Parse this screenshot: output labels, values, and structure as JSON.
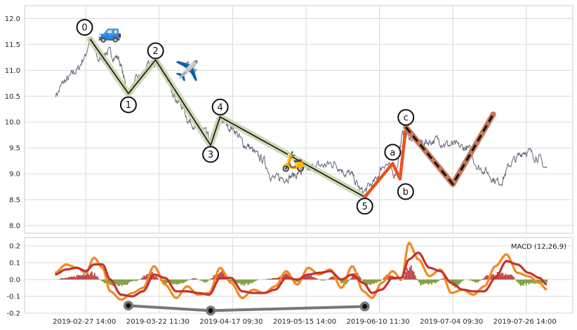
{
  "chart_data": [
    {
      "type": "line",
      "title": "",
      "xlabel": "",
      "ylabel": "",
      "ylim": [
        7.85,
        12.25
      ],
      "yticks": [
        "8.0",
        "8.5",
        "9.0",
        "9.5",
        "10.0",
        "10.5",
        "11.0",
        "11.5",
        "12.0"
      ],
      "xticks": [
        "2019-02-27 14:00",
        "2019-03-22 11:30",
        "2019-04-17 09:30",
        "2019-05-15 14:00",
        "2019-06-10 11:30",
        "2019-07-04 09:30",
        "2019-07-26 14:00"
      ],
      "x_range": [
        0,
        7.0
      ],
      "grid": true,
      "price_anchors": [
        {
          "x": 0.31,
          "y": 10.55
        },
        {
          "x": 0.45,
          "y": 10.8
        },
        {
          "x": 0.6,
          "y": 11.0
        },
        {
          "x": 0.7,
          "y": 11.25
        },
        {
          "x": 0.78,
          "y": 11.6
        },
        {
          "x": 0.9,
          "y": 11.2
        },
        {
          "x": 1.0,
          "y": 11.35
        },
        {
          "x": 1.15,
          "y": 11.25
        },
        {
          "x": 1.3,
          "y": 10.6
        },
        {
          "x": 1.45,
          "y": 10.85
        },
        {
          "x": 1.6,
          "y": 11.1
        },
        {
          "x": 1.72,
          "y": 11.15
        },
        {
          "x": 1.85,
          "y": 10.75
        },
        {
          "x": 2.0,
          "y": 10.35
        },
        {
          "x": 2.15,
          "y": 10.0
        },
        {
          "x": 2.3,
          "y": 9.85
        },
        {
          "x": 2.42,
          "y": 9.65
        },
        {
          "x": 2.55,
          "y": 10.05
        },
        {
          "x": 2.7,
          "y": 9.9
        },
        {
          "x": 2.9,
          "y": 9.55
        },
        {
          "x": 3.1,
          "y": 9.3
        },
        {
          "x": 3.3,
          "y": 8.9
        },
        {
          "x": 3.5,
          "y": 8.95
        },
        {
          "x": 3.7,
          "y": 9.05
        },
        {
          "x": 3.9,
          "y": 9.15
        },
        {
          "x": 4.1,
          "y": 9.2
        },
        {
          "x": 4.3,
          "y": 9.0
        },
        {
          "x": 4.5,
          "y": 8.65
        },
        {
          "x": 4.62,
          "y": 8.8
        },
        {
          "x": 4.8,
          "y": 9.2
        },
        {
          "x": 4.92,
          "y": 9.0
        },
        {
          "x": 5.05,
          "y": 9.75
        },
        {
          "x": 5.3,
          "y": 9.6
        },
        {
          "x": 5.5,
          "y": 9.65
        },
        {
          "x": 5.7,
          "y": 9.55
        },
        {
          "x": 5.9,
          "y": 9.5
        },
        {
          "x": 6.1,
          "y": 9.1
        },
        {
          "x": 6.35,
          "y": 8.85
        },
        {
          "x": 6.55,
          "y": 9.25
        },
        {
          "x": 6.7,
          "y": 9.45
        },
        {
          "x": 6.85,
          "y": 9.35
        },
        {
          "x": 7.0,
          "y": 9.1
        }
      ],
      "price_series_color": "#5d6978",
      "impulse_waves": {
        "labels": [
          "0",
          "1",
          "2",
          "3",
          "4",
          "5"
        ],
        "points": [
          {
            "x": 0.78,
            "y": 11.6
          },
          {
            "x": 1.3,
            "y": 10.55
          },
          {
            "x": 1.67,
            "y": 11.2
          },
          {
            "x": 2.42,
            "y": 9.55
          },
          {
            "x": 2.55,
            "y": 10.1
          },
          {
            "x": 4.52,
            "y": 8.55
          }
        ],
        "line_color": "#111111",
        "band_color": "#c5d4a8"
      },
      "corrective_waves": {
        "labels": [
          "a",
          "b",
          "c"
        ],
        "points": [
          {
            "x": 4.52,
            "y": 8.55
          },
          {
            "x": 4.9,
            "y": 9.2
          },
          {
            "x": 5.0,
            "y": 8.9
          },
          {
            "x": 5.08,
            "y": 9.9
          }
        ],
        "color": "#e8531e"
      },
      "projection": {
        "points": [
          {
            "x": 5.08,
            "y": 9.9
          },
          {
            "x": 5.72,
            "y": 8.8
          },
          {
            "x": 6.27,
            "y": 10.15
          }
        ],
        "line_color": "#111111",
        "band_color": "#c8775a"
      },
      "icons": [
        {
          "name": "car-icon",
          "glyph": "🚙",
          "x": 1.05,
          "y": 11.75
        },
        {
          "name": "airplane-icon",
          "glyph": "✈️",
          "x": 2.1,
          "y": 11.0
        },
        {
          "name": "scooter-icon",
          "glyph": "🛵",
          "x": 3.55,
          "y": 9.25
        }
      ]
    },
    {
      "type": "line",
      "title": "",
      "legend": "MACD (12,26,9)",
      "legend_position": "top-right",
      "ylim": [
        -0.2,
        0.25
      ],
      "yticks": [
        "-0.2",
        "-0.1",
        "0.0",
        "0.1",
        "0.2"
      ],
      "x_range": [
        0,
        7.0
      ],
      "grid": true,
      "macd_fast": {
        "color": "#f2891f",
        "points": [
          {
            "x": 0.3,
            "y": 0.04
          },
          {
            "x": 0.45,
            "y": 0.09
          },
          {
            "x": 0.6,
            "y": 0.07
          },
          {
            "x": 0.72,
            "y": 0.04
          },
          {
            "x": 0.83,
            "y": 0.13
          },
          {
            "x": 0.95,
            "y": 0.07
          },
          {
            "x": 1.05,
            "y": -0.07
          },
          {
            "x": 1.2,
            "y": -0.12
          },
          {
            "x": 1.35,
            "y": -0.08
          },
          {
            "x": 1.5,
            "y": -0.05
          },
          {
            "x": 1.65,
            "y": 0.08
          },
          {
            "x": 1.8,
            "y": -0.03
          },
          {
            "x": 1.95,
            "y": -0.11
          },
          {
            "x": 2.1,
            "y": -0.04
          },
          {
            "x": 2.25,
            "y": -0.09
          },
          {
            "x": 2.4,
            "y": -0.08
          },
          {
            "x": 2.55,
            "y": 0.07
          },
          {
            "x": 2.7,
            "y": -0.02
          },
          {
            "x": 2.85,
            "y": -0.11
          },
          {
            "x": 3.0,
            "y": -0.06
          },
          {
            "x": 3.15,
            "y": -0.08
          },
          {
            "x": 3.3,
            "y": -0.04
          },
          {
            "x": 3.45,
            "y": 0.05
          },
          {
            "x": 3.6,
            "y": -0.03
          },
          {
            "x": 3.75,
            "y": 0.07
          },
          {
            "x": 3.9,
            "y": 0.03
          },
          {
            "x": 4.05,
            "y": 0.06
          },
          {
            "x": 4.2,
            "y": -0.05
          },
          {
            "x": 4.35,
            "y": 0.08
          },
          {
            "x": 4.5,
            "y": -0.07
          },
          {
            "x": 4.62,
            "y": -0.11
          },
          {
            "x": 4.75,
            "y": -0.02
          },
          {
            "x": 4.9,
            "y": 0.05
          },
          {
            "x": 5.02,
            "y": 0.0
          },
          {
            "x": 5.12,
            "y": 0.22
          },
          {
            "x": 5.25,
            "y": 0.12
          },
          {
            "x": 5.4,
            "y": 0.02
          },
          {
            "x": 5.55,
            "y": 0.06
          },
          {
            "x": 5.7,
            "y": -0.08
          },
          {
            "x": 5.85,
            "y": -0.06
          },
          {
            "x": 6.0,
            "y": -0.09
          },
          {
            "x": 6.15,
            "y": -0.04
          },
          {
            "x": 6.3,
            "y": 0.08
          },
          {
            "x": 6.45,
            "y": 0.15
          },
          {
            "x": 6.6,
            "y": 0.04
          },
          {
            "x": 6.75,
            "y": 0.02
          },
          {
            "x": 6.9,
            "y": -0.02
          },
          {
            "x": 7.0,
            "y": -0.06
          }
        ]
      },
      "macd_slow": {
        "color": "#c6322f",
        "points": [
          {
            "x": 0.3,
            "y": 0.03
          },
          {
            "x": 0.45,
            "y": 0.06
          },
          {
            "x": 0.6,
            "y": 0.07
          },
          {
            "x": 0.72,
            "y": 0.05
          },
          {
            "x": 0.83,
            "y": 0.09
          },
          {
            "x": 0.95,
            "y": 0.09
          },
          {
            "x": 1.05,
            "y": 0.0
          },
          {
            "x": 1.2,
            "y": -0.09
          },
          {
            "x": 1.35,
            "y": -0.1
          },
          {
            "x": 1.5,
            "y": -0.07
          },
          {
            "x": 1.65,
            "y": 0.03
          },
          {
            "x": 1.8,
            "y": 0.01
          },
          {
            "x": 1.95,
            "y": -0.07
          },
          {
            "x": 2.1,
            "y": -0.07
          },
          {
            "x": 2.25,
            "y": -0.08
          },
          {
            "x": 2.4,
            "y": -0.09
          },
          {
            "x": 2.55,
            "y": 0.01
          },
          {
            "x": 2.7,
            "y": 0.01
          },
          {
            "x": 2.85,
            "y": -0.07
          },
          {
            "x": 3.0,
            "y": -0.08
          },
          {
            "x": 3.15,
            "y": -0.08
          },
          {
            "x": 3.3,
            "y": -0.06
          },
          {
            "x": 3.45,
            "y": 0.01
          },
          {
            "x": 3.6,
            "y": 0.0
          },
          {
            "x": 3.75,
            "y": 0.03
          },
          {
            "x": 3.9,
            "y": 0.04
          },
          {
            "x": 4.05,
            "y": 0.05
          },
          {
            "x": 4.2,
            "y": 0.0
          },
          {
            "x": 4.35,
            "y": 0.03
          },
          {
            "x": 4.5,
            "y": -0.02
          },
          {
            "x": 4.62,
            "y": -0.08
          },
          {
            "x": 4.75,
            "y": -0.06
          },
          {
            "x": 4.9,
            "y": 0.01
          },
          {
            "x": 5.02,
            "y": 0.01
          },
          {
            "x": 5.12,
            "y": 0.12
          },
          {
            "x": 5.25,
            "y": 0.16
          },
          {
            "x": 5.4,
            "y": 0.07
          },
          {
            "x": 5.55,
            "y": 0.05
          },
          {
            "x": 5.7,
            "y": -0.02
          },
          {
            "x": 5.85,
            "y": -0.06
          },
          {
            "x": 6.0,
            "y": -0.07
          },
          {
            "x": 6.15,
            "y": -0.07
          },
          {
            "x": 6.3,
            "y": 0.01
          },
          {
            "x": 6.45,
            "y": 0.11
          },
          {
            "x": 6.6,
            "y": 0.09
          },
          {
            "x": 6.75,
            "y": 0.04
          },
          {
            "x": 6.9,
            "y": 0.01
          },
          {
            "x": 7.0,
            "y": -0.03
          }
        ]
      },
      "histogram": {
        "positive_color": "#b22a2a",
        "negative_color": "#6b8e23",
        "anchors": [
          {
            "x": 0.3,
            "y": 0.0
          },
          {
            "x": 0.5,
            "y": 0.02
          },
          {
            "x": 0.8,
            "y": 0.05
          },
          {
            "x": 1.0,
            "y": -0.03
          },
          {
            "x": 1.2,
            "y": -0.05
          },
          {
            "x": 1.4,
            "y": -0.01
          },
          {
            "x": 1.6,
            "y": 0.05
          },
          {
            "x": 1.8,
            "y": -0.03
          },
          {
            "x": 2.0,
            "y": -0.03
          },
          {
            "x": 2.2,
            "y": 0.01
          },
          {
            "x": 2.35,
            "y": -0.02
          },
          {
            "x": 2.55,
            "y": 0.06
          },
          {
            "x": 2.75,
            "y": -0.03
          },
          {
            "x": 2.9,
            "y": -0.04
          },
          {
            "x": 3.1,
            "y": 0.0
          },
          {
            "x": 3.3,
            "y": 0.01
          },
          {
            "x": 3.45,
            "y": 0.04
          },
          {
            "x": 3.6,
            "y": -0.02
          },
          {
            "x": 3.75,
            "y": 0.04
          },
          {
            "x": 3.95,
            "y": -0.01
          },
          {
            "x": 4.1,
            "y": 0.02
          },
          {
            "x": 4.25,
            "y": -0.04
          },
          {
            "x": 4.4,
            "y": 0.05
          },
          {
            "x": 4.55,
            "y": -0.05
          },
          {
            "x": 4.7,
            "y": -0.02
          },
          {
            "x": 4.85,
            "y": 0.04
          },
          {
            "x": 5.02,
            "y": -0.01
          },
          {
            "x": 5.12,
            "y": 0.1
          },
          {
            "x": 5.3,
            "y": -0.04
          },
          {
            "x": 5.45,
            "y": -0.03
          },
          {
            "x": 5.6,
            "y": 0.01
          },
          {
            "x": 5.75,
            "y": -0.05
          },
          {
            "x": 5.9,
            "y": 0.0
          },
          {
            "x": 6.05,
            "y": -0.02
          },
          {
            "x": 6.2,
            "y": 0.03
          },
          {
            "x": 6.35,
            "y": 0.05
          },
          {
            "x": 6.5,
            "y": 0.04
          },
          {
            "x": 6.65,
            "y": -0.04
          },
          {
            "x": 6.8,
            "y": -0.03
          },
          {
            "x": 7.0,
            "y": -0.02
          }
        ]
      },
      "divergence": {
        "color": "#777777",
        "points": [
          {
            "x": 1.3,
            "y": -0.155
          },
          {
            "x": 2.42,
            "y": -0.185
          },
          {
            "x": 4.52,
            "y": -0.16
          }
        ]
      }
    }
  ]
}
